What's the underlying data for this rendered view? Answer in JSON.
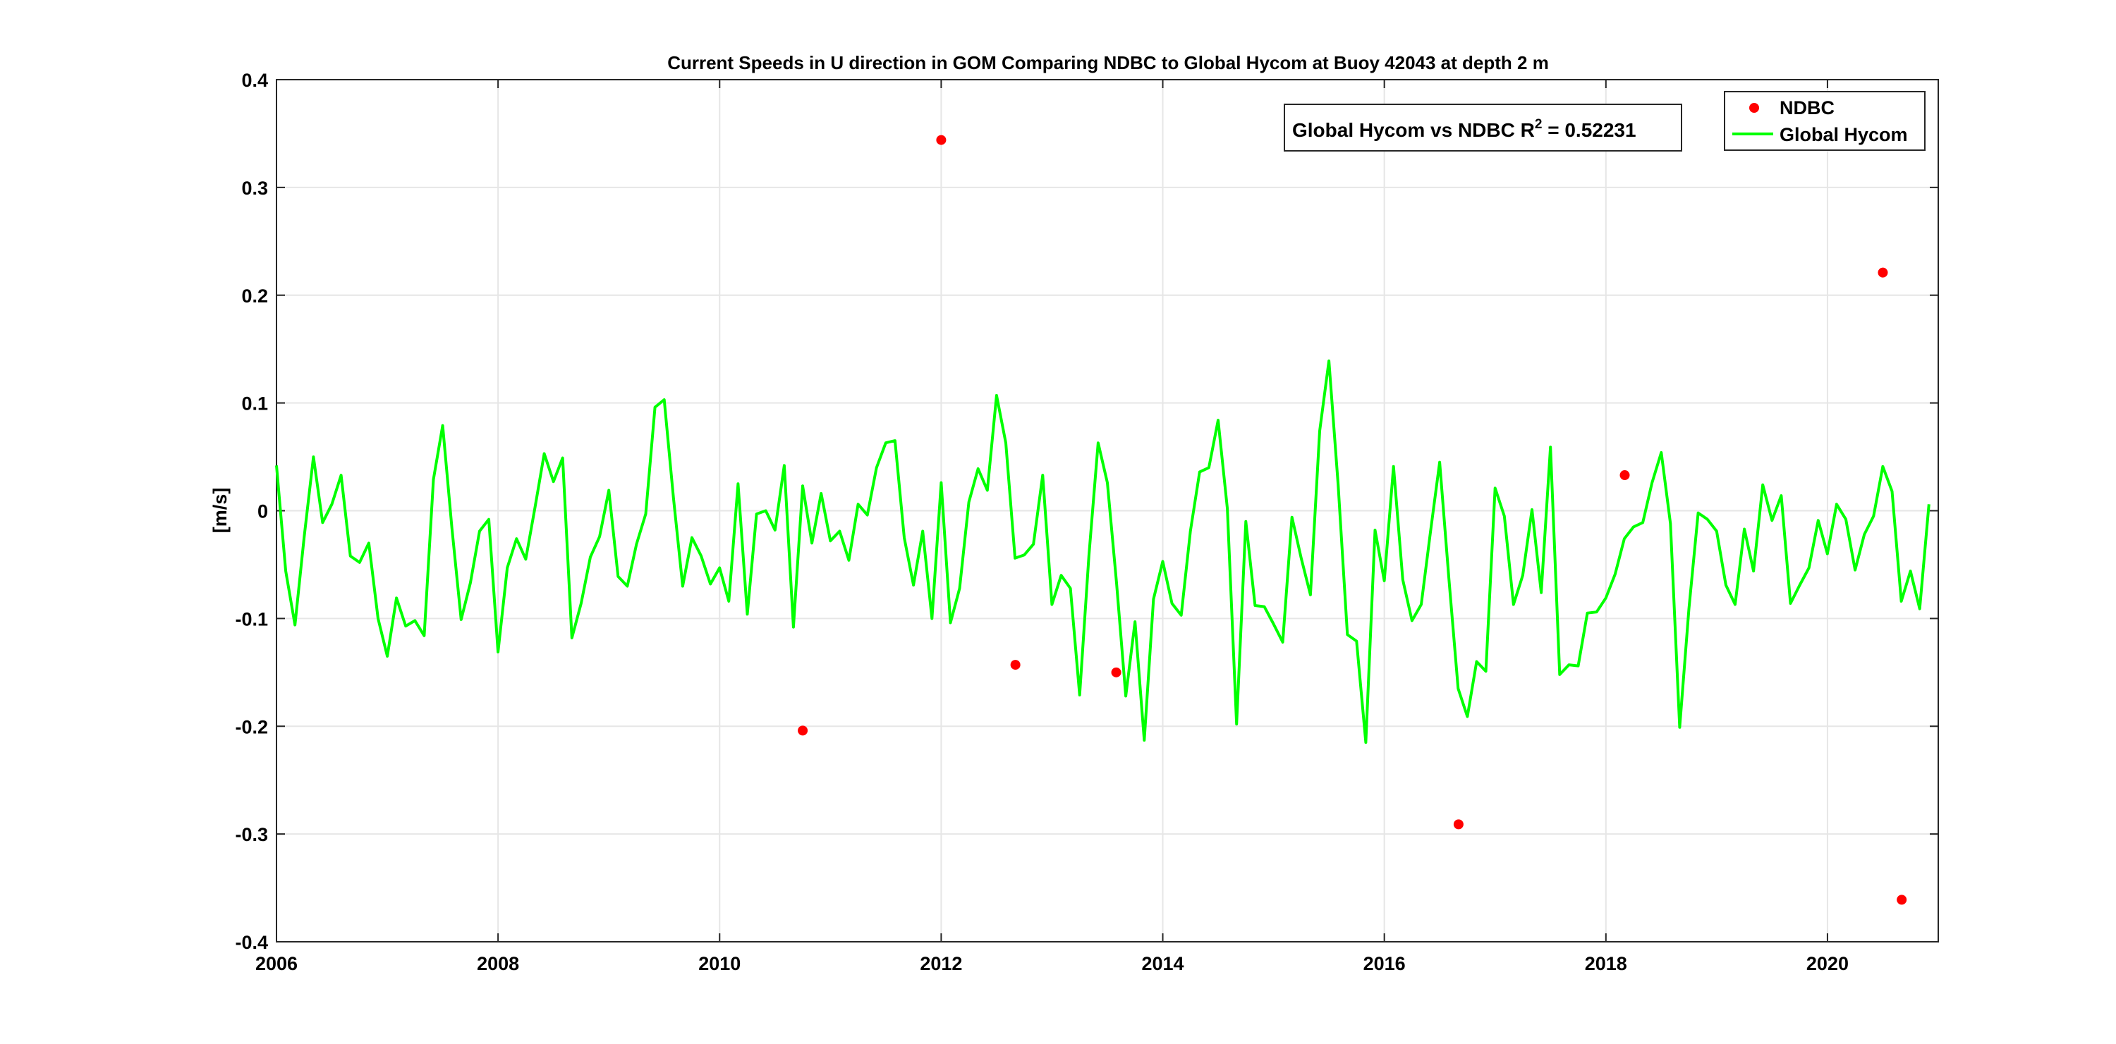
{
  "chart_data": {
    "type": "line",
    "title": "Current Speeds in U direction in GOM Comparing NDBC to Global Hycom at Buoy  42043  at depth  2 m",
    "xlabel": "",
    "ylabel": "[m/s]",
    "xlim": [
      2006,
      2021
    ],
    "ylim": [
      -0.4,
      0.4
    ],
    "xticks": [
      2006,
      2008,
      2010,
      2012,
      2014,
      2016,
      2018,
      2020
    ],
    "xtick_labels": [
      "2006",
      "2008",
      "2010",
      "2012",
      "2014",
      "2016",
      "2018",
      "2020"
    ],
    "yticks": [
      -0.4,
      -0.3,
      -0.2,
      -0.1,
      0,
      0.1,
      0.2,
      0.3,
      0.4
    ],
    "ytick_labels": [
      "-0.4",
      "-0.3",
      "-0.2",
      "-0.1",
      "0",
      "0.1",
      "0.2",
      "0.3",
      "0.4"
    ],
    "grid": true,
    "legend_position": "top-right",
    "annotation": {
      "prefix": "Global Hycom vs NDBC R",
      "superscript": "2",
      "suffix": " = 0.52231"
    },
    "series": [
      {
        "name": "NDBC",
        "style": "markers",
        "color": "#ff0000",
        "points": [
          [
            2010.75,
            -0.204
          ],
          [
            2012.0,
            0.344
          ],
          [
            2012.67,
            -0.143
          ],
          [
            2013.58,
            -0.15
          ],
          [
            2016.67,
            -0.291
          ],
          [
            2018.17,
            0.033
          ],
          [
            2020.5,
            0.221
          ],
          [
            2020.67,
            -0.361
          ]
        ]
      },
      {
        "name": "Global Hycom",
        "style": "line",
        "color": "#00ff00",
        "x_start": 2006.0,
        "x_step": 0.08333,
        "values": [
          0.042,
          -0.056,
          -0.106,
          -0.024,
          0.05,
          -0.011,
          0.006,
          0.033,
          -0.042,
          -0.048,
          -0.03,
          -0.1,
          -0.135,
          -0.081,
          -0.107,
          -0.102,
          -0.116,
          0.029,
          0.079,
          -0.016,
          -0.101,
          -0.067,
          -0.019,
          -0.008,
          -0.131,
          -0.053,
          -0.026,
          -0.045,
          0.003,
          0.053,
          0.027,
          0.049,
          -0.118,
          -0.086,
          -0.043,
          -0.024,
          0.019,
          -0.061,
          -0.07,
          -0.031,
          -0.003,
          0.096,
          0.103,
          0.012,
          -0.07,
          -0.025,
          -0.042,
          -0.068,
          -0.053,
          -0.084,
          0.025,
          -0.096,
          -0.003,
          0.0,
          -0.018,
          0.042,
          -0.108,
          0.023,
          -0.03,
          0.016,
          -0.028,
          -0.019,
          -0.046,
          0.006,
          -0.004,
          0.04,
          0.063,
          0.065,
          -0.025,
          -0.069,
          -0.019,
          -0.1,
          0.026,
          -0.104,
          -0.072,
          0.008,
          0.039,
          0.019,
          0.107,
          0.063,
          -0.044,
          -0.041,
          -0.031,
          0.033,
          -0.087,
          -0.06,
          -0.072,
          -0.171,
          -0.042,
          0.063,
          0.026,
          -0.067,
          -0.172,
          -0.103,
          -0.213,
          -0.082,
          -0.047,
          -0.086,
          -0.097,
          -0.019,
          0.036,
          0.04,
          0.084,
          0.002,
          -0.198,
          -0.01,
          -0.088,
          -0.089,
          -0.105,
          -0.122,
          -0.006,
          -0.044,
          -0.078,
          0.074,
          0.139,
          0.024,
          -0.115,
          -0.121,
          -0.215,
          -0.018,
          -0.065,
          0.041,
          -0.064,
          -0.102,
          -0.087,
          -0.02,
          0.045,
          -0.063,
          -0.165,
          -0.191,
          -0.14,
          -0.149,
          0.021,
          -0.005,
          -0.087,
          -0.06,
          0.001,
          -0.076,
          0.059,
          -0.152,
          -0.143,
          -0.144,
          -0.095,
          -0.094,
          -0.081,
          -0.059,
          -0.026,
          -0.015,
          -0.011,
          0.026,
          0.054,
          -0.012,
          -0.201,
          -0.091,
          -0.002,
          -0.008,
          -0.019,
          -0.069,
          -0.087,
          -0.017,
          -0.056,
          0.024,
          -0.009,
          0.014,
          -0.086,
          -0.069,
          -0.053,
          -0.009,
          -0.04,
          0.006,
          -0.008,
          -0.055,
          -0.022,
          -0.005,
          0.041,
          0.018,
          -0.084,
          -0.056,
          -0.091,
          0.006
        ]
      }
    ]
  }
}
